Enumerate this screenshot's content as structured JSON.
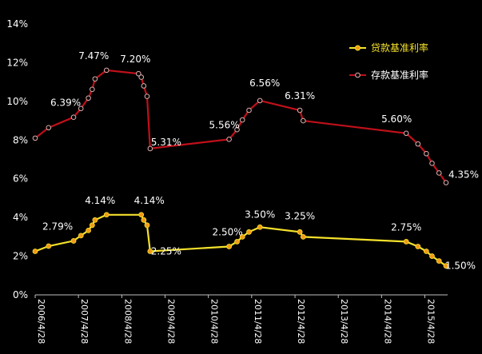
{
  "chart_data": {
    "type": "line",
    "title": "",
    "xlabel": "",
    "ylabel": "",
    "ylim": [
      0,
      14
    ],
    "y_ticks": [
      "0%",
      "2%",
      "4%",
      "6%",
      "8%",
      "10%",
      "12%",
      "14%"
    ],
    "x_range": [
      "2006-04-28",
      "2015-10-24"
    ],
    "x_ticks": [
      "2006/4/28",
      "2007/4/28",
      "2008/4/28",
      "2009/4/28",
      "2010/4/28",
      "2011/4/28",
      "2012/4/28",
      "2013/4/28",
      "2014/4/28",
      "2015/4/28"
    ],
    "grid": false,
    "legend_position": "top-right",
    "series": [
      {
        "name": "贷款基准利率",
        "color": "#f5e12b",
        "marker_color": "#f29a1a",
        "points": [
          {
            "x": "2006-04-28",
            "y": 2.25
          },
          {
            "x": "2006-08-19",
            "y": 2.52
          },
          {
            "x": "2007-03-18",
            "y": 2.79
          },
          {
            "x": "2007-05-19",
            "y": 3.06
          },
          {
            "x": "2007-07-21",
            "y": 3.33
          },
          {
            "x": "2007-08-22",
            "y": 3.6
          },
          {
            "x": "2007-09-15",
            "y": 3.87
          },
          {
            "x": "2007-12-21",
            "y": 4.14
          },
          {
            "x": "2008-10-09",
            "y": 4.14
          },
          {
            "x": "2008-10-30",
            "y": 3.87
          },
          {
            "x": "2008-11-27",
            "y": 3.6
          },
          {
            "x": "2008-12-23",
            "y": 2.25
          },
          {
            "x": "2010-10-20",
            "y": 2.5
          },
          {
            "x": "2010-12-26",
            "y": 2.75
          },
          {
            "x": "2011-02-09",
            "y": 3.0
          },
          {
            "x": "2011-04-06",
            "y": 3.25
          },
          {
            "x": "2011-07-07",
            "y": 3.5
          },
          {
            "x": "2012-06-08",
            "y": 3.25
          },
          {
            "x": "2012-07-06",
            "y": 3.0
          },
          {
            "x": "2014-11-22",
            "y": 2.75
          },
          {
            "x": "2015-03-01",
            "y": 2.5
          },
          {
            "x": "2015-05-11",
            "y": 2.25
          },
          {
            "x": "2015-06-28",
            "y": 2.0
          },
          {
            "x": "2015-08-26",
            "y": 1.75
          },
          {
            "x": "2015-10-24",
            "y": 1.5
          }
        ],
        "labels": [
          {
            "x": "2007-03-18",
            "y": 2.79,
            "text": "2.79%"
          },
          {
            "x": "2007-12-21",
            "y": 4.14,
            "text": "4.14%"
          },
          {
            "x": "2008-10-09",
            "y": 4.14,
            "text": "4.14%"
          },
          {
            "x": "2008-12-23",
            "y": 2.25,
            "text": "2.25%"
          },
          {
            "x": "2010-10-20",
            "y": 2.5,
            "text": "2.50%"
          },
          {
            "x": "2011-07-07",
            "y": 3.5,
            "text": "3.50%"
          },
          {
            "x": "2012-06-08",
            "y": 3.25,
            "text": "3.25%"
          },
          {
            "x": "2014-11-22",
            "y": 2.75,
            "text": "2.75%"
          },
          {
            "x": "2015-10-24",
            "y": 1.5,
            "text": "1.50%"
          }
        ]
      },
      {
        "name": "存款基准利率",
        "color": "#c0101a",
        "marker_color": "#e0b0b0",
        "points": [
          {
            "x": "2006-04-28",
            "y": 8.1
          },
          {
            "x": "2006-08-19",
            "y": 8.64
          },
          {
            "x": "2007-03-18",
            "y": 9.18
          },
          {
            "x": "2007-05-19",
            "y": 9.63
          },
          {
            "x": "2007-07-21",
            "y": 10.17
          },
          {
            "x": "2007-08-22",
            "y": 10.62
          },
          {
            "x": "2007-09-15",
            "y": 11.16
          },
          {
            "x": "2007-12-21",
            "y": 11.61
          },
          {
            "x": "2008-09-16",
            "y": 11.43
          },
          {
            "x": "2008-10-09",
            "y": 11.25
          },
          {
            "x": "2008-10-30",
            "y": 10.8
          },
          {
            "x": "2008-11-27",
            "y": 10.26
          },
          {
            "x": "2008-12-23",
            "y": 7.56
          },
          {
            "x": "2010-10-20",
            "y": 8.04
          },
          {
            "x": "2010-12-26",
            "y": 8.54
          },
          {
            "x": "2011-02-09",
            "y": 9.04
          },
          {
            "x": "2011-04-06",
            "y": 9.54
          },
          {
            "x": "2011-07-07",
            "y": 10.04
          },
          {
            "x": "2012-06-08",
            "y": 9.54
          },
          {
            "x": "2012-07-06",
            "y": 9.0
          },
          {
            "x": "2014-11-22",
            "y": 8.35
          },
          {
            "x": "2015-03-01",
            "y": 7.8
          },
          {
            "x": "2015-05-11",
            "y": 7.3
          },
          {
            "x": "2015-06-28",
            "y": 6.8
          },
          {
            "x": "2015-08-26",
            "y": 6.3
          },
          {
            "x": "2015-10-24",
            "y": 5.8
          }
        ],
        "labels": [
          {
            "x": "2007-03-18",
            "y": 9.18,
            "text": "6.39%"
          },
          {
            "x": "2007-12-21",
            "y": 11.61,
            "text": "7.47%"
          },
          {
            "x": "2008-09-16",
            "y": 11.43,
            "text": "7.20%"
          },
          {
            "x": "2008-12-23",
            "y": 7.56,
            "text": "5.31%"
          },
          {
            "x": "2010-10-20",
            "y": 8.04,
            "text": "5.56%"
          },
          {
            "x": "2011-07-07",
            "y": 10.04,
            "text": "6.56%"
          },
          {
            "x": "2012-06-08",
            "y": 9.54,
            "text": "6.31%"
          },
          {
            "x": "2014-11-22",
            "y": 8.35,
            "text": "5.60%"
          },
          {
            "x": "2015-10-24",
            "y": 5.8,
            "text": "4.35%"
          }
        ]
      }
    ]
  }
}
